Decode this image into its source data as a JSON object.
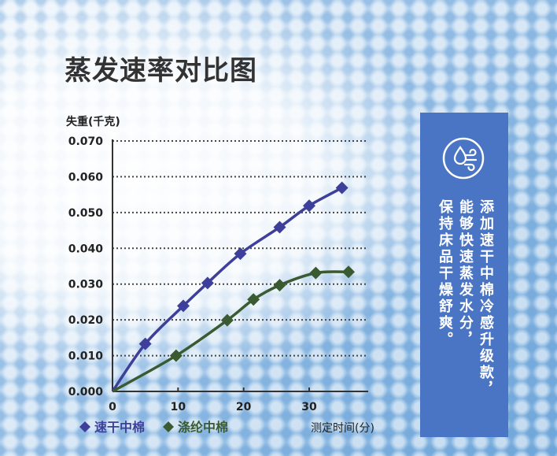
{
  "page": {
    "title": "蒸发速率对比图"
  },
  "panel": {
    "icon": "wind-drop-icon",
    "lines": [
      "添加速干中棉冷感升级款，",
      "能够快速蒸发水分，",
      "保持床品干燥舒爽。"
    ],
    "color": "#4a74c4"
  },
  "chart_data": {
    "type": "line",
    "title": "蒸发速率对比图",
    "ylabel": "失重(千克)",
    "xlabel": "测定时间(分)",
    "xlim": [
      0,
      39
    ],
    "ylim": [
      0,
      0.07
    ],
    "x_ticks": [
      10,
      20,
      30
    ],
    "y_ticks": [
      "0.000",
      "0.010",
      "0.020",
      "0.030",
      "0.040",
      "0.050",
      "0.060",
      "0.070"
    ],
    "grid": "horizontal dotted",
    "legend_position": "bottom-left",
    "series": [
      {
        "name": "速干中棉",
        "color": "#3d3f9a",
        "marker": "diamond",
        "points": [
          [
            5,
            0.0133
          ],
          [
            10.8,
            0.0239
          ],
          [
            14.5,
            0.0303
          ],
          [
            19.5,
            0.0385
          ],
          [
            25.5,
            0.0459
          ],
          [
            30,
            0.0519
          ],
          [
            35,
            0.0569
          ]
        ]
      },
      {
        "name": "涤纶中棉",
        "color": "#3a5a32",
        "marker": "diamond",
        "points": [
          [
            9.7,
            0.01
          ],
          [
            17.5,
            0.0199
          ],
          [
            21.5,
            0.0257
          ],
          [
            25.5,
            0.0297
          ],
          [
            31,
            0.0331
          ],
          [
            36,
            0.0334
          ]
        ]
      }
    ]
  }
}
